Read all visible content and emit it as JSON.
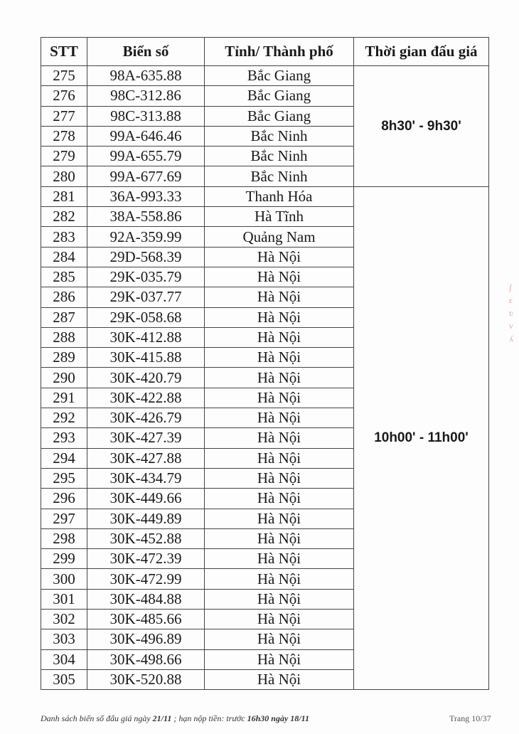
{
  "header": {
    "stt": "STT",
    "plate": "Biển số",
    "province": "Tỉnh/ Thành phố",
    "time": "Thời gian đấu giá"
  },
  "groups": [
    {
      "time": "8h30' - 9h30'",
      "rows": [
        [
          "275",
          "98A-635.88",
          "Bắc Giang"
        ],
        [
          "276",
          "98C-312.86",
          "Bắc Giang"
        ],
        [
          "277",
          "98C-313.88",
          "Bắc Giang"
        ],
        [
          "278",
          "99A-646.46",
          "Bắc Ninh"
        ],
        [
          "279",
          "99A-655.79",
          "Bắc Ninh"
        ],
        [
          "280",
          "99A-677.69",
          "Bắc Ninh"
        ]
      ]
    },
    {
      "time": "10h00' - 11h00'",
      "rows": [
        [
          "281",
          "36A-993.33",
          "Thanh Hóa"
        ],
        [
          "282",
          "38A-558.86",
          "Hà Tĩnh"
        ],
        [
          "283",
          "92A-359.99",
          "Quảng Nam"
        ],
        [
          "284",
          "29D-568.39",
          "Hà Nội"
        ],
        [
          "285",
          "29K-035.79",
          "Hà Nội"
        ],
        [
          "286",
          "29K-037.77",
          "Hà Nội"
        ],
        [
          "287",
          "29K-058.68",
          "Hà Nội"
        ],
        [
          "288",
          "30K-412.88",
          "Hà Nội"
        ],
        [
          "289",
          "30K-415.88",
          "Hà Nội"
        ],
        [
          "290",
          "30K-420.79",
          "Hà Nội"
        ],
        [
          "291",
          "30K-422.88",
          "Hà Nội"
        ],
        [
          "292",
          "30K-426.79",
          "Hà Nội"
        ],
        [
          "293",
          "30K-427.39",
          "Hà Nội"
        ],
        [
          "294",
          "30K-427.88",
          "Hà Nội"
        ],
        [
          "295",
          "30K-434.79",
          "Hà Nội"
        ],
        [
          "296",
          "30K-449.66",
          "Hà Nội"
        ],
        [
          "297",
          "30K-449.89",
          "Hà Nội"
        ],
        [
          "298",
          "30K-452.88",
          "Hà Nội"
        ],
        [
          "299",
          "30K-472.39",
          "Hà Nội"
        ],
        [
          "300",
          "30K-472.99",
          "Hà Nội"
        ],
        [
          "301",
          "30K-484.88",
          "Hà Nội"
        ],
        [
          "302",
          "30K-485.66",
          "Hà Nội"
        ],
        [
          "303",
          "30K-496.89",
          "Hà Nội"
        ],
        [
          "304",
          "30K-498.66",
          "Hà Nội"
        ],
        [
          "305",
          "30K-520.88",
          "Hà Nội"
        ]
      ]
    }
  ],
  "footer": {
    "prefix": "Danh sách biển số đấu giá ngày ",
    "date": "21/11",
    "middle": " ; hạn nộp tiền: trước ",
    "deadline": "16h30 ngày 18/11",
    "page": "Trang 10/37"
  }
}
